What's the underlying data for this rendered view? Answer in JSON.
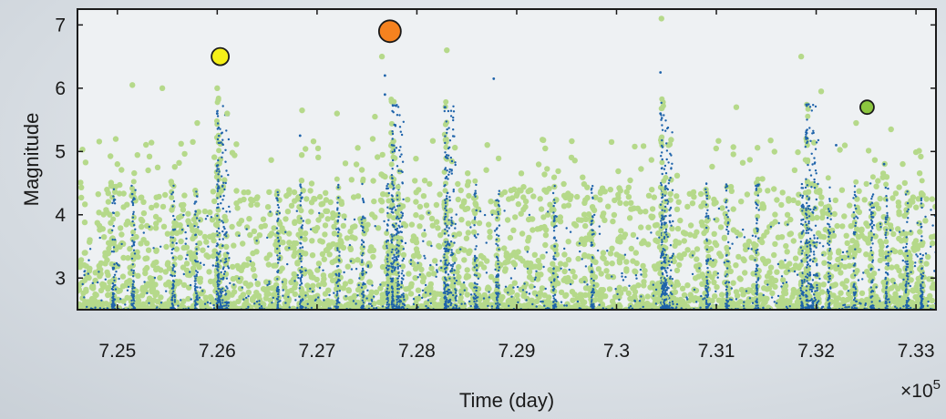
{
  "chart_data": {
    "type": "scatter",
    "title": "",
    "xlabel": "Time (day)",
    "ylabel": "Magnitude",
    "x_multiplier_label": "×10",
    "x_multiplier_exponent": "5",
    "xlim": [
      72460,
      73320
    ],
    "ylim": [
      2.5,
      7.25
    ],
    "x_ticks": [
      72500,
      72600,
      72700,
      72800,
      72900,
      73000,
      73100,
      73200,
      73300
    ],
    "x_tick_labels": [
      "7.25",
      "7.26",
      "7.27",
      "7.28",
      "7.29",
      "7.3",
      "7.31",
      "7.32",
      "7.33"
    ],
    "y_ticks": [
      3,
      4,
      5,
      6,
      7
    ],
    "y_tick_labels": [
      "3",
      "4",
      "5",
      "6",
      "7"
    ],
    "grid": false,
    "legend": "none",
    "colors": {
      "background_series": "#b5d98a",
      "blue_series": "#1e63aa",
      "highlight_yellow": "#f5f018",
      "highlight_orange": "#f5821f",
      "highlight_green": "#8cc63f",
      "frame": "#1a1a1a"
    },
    "series": [
      {
        "color": "#b5d98a",
        "marker": "circle",
        "description_points": [
          [
            72500,
            4.8
          ],
          [
            72515,
            6.05
          ],
          [
            72545,
            6.0
          ],
          [
            72580,
            5.45
          ],
          [
            72600,
            6.0
          ],
          [
            72610,
            5.6
          ],
          [
            72685,
            5.65
          ],
          [
            72720,
            5.6
          ],
          [
            72758,
            5.55
          ],
          [
            72765,
            6.5
          ],
          [
            72830,
            6.6
          ],
          [
            72995,
            5.15
          ],
          [
            73045,
            7.1
          ],
          [
            73185,
            6.5
          ],
          [
            73205,
            5.95
          ],
          [
            73240,
            5.45
          ],
          [
            73120,
            5.7
          ],
          [
            73275,
            5.35
          ]
        ]
      },
      {
        "color": "#1e63aa",
        "marker": "point",
        "description_points": [
          [
            72600,
            5.6
          ],
          [
            72683,
            5.25
          ],
          [
            72768,
            6.2
          ],
          [
            72768,
            5.9
          ],
          [
            72828,
            5.7
          ],
          [
            72877,
            6.15
          ],
          [
            73044,
            6.25
          ],
          [
            73044,
            5.6
          ],
          [
            73190,
            5.2
          ],
          [
            73220,
            5.1
          ],
          [
            73268,
            4.8
          ]
        ]
      },
      {
        "color": "#f5f018",
        "marker": "large-circle",
        "points": [
          [
            72603,
            6.5
          ]
        ]
      },
      {
        "color": "#f5821f",
        "marker": "large-circle",
        "points": [
          [
            72773,
            6.9
          ]
        ]
      },
      {
        "color": "#8cc63f",
        "marker": "large-circle",
        "points": [
          [
            73251,
            5.7
          ]
        ]
      }
    ],
    "burst_times": [
      72495,
      72515,
      72555,
      72578,
      72600,
      72660,
      72683,
      72720,
      72745,
      72770,
      72775,
      72780,
      72828,
      72858,
      72880,
      72937,
      72975,
      73045,
      73048,
      73090,
      73110,
      73140,
      73185,
      73190,
      73212,
      73238,
      73255,
      73270,
      73290,
      73305
    ]
  }
}
